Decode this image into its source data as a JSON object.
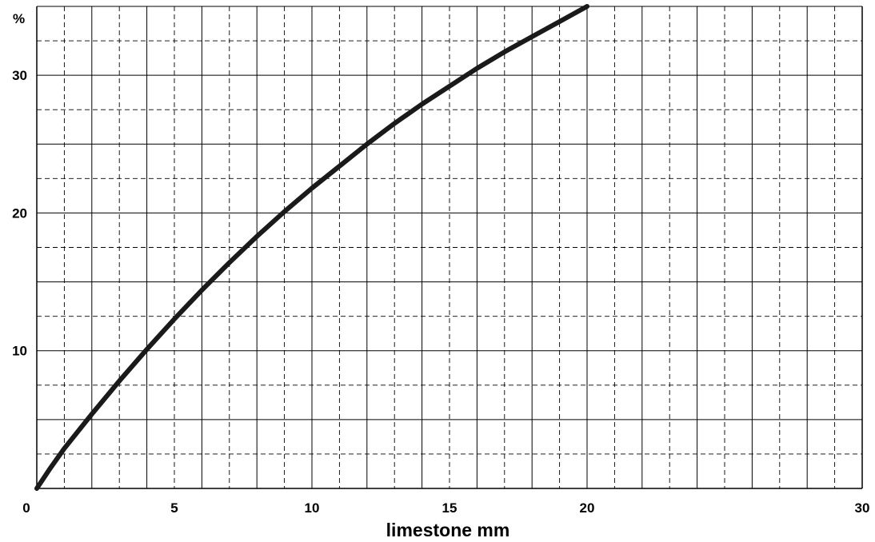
{
  "chart_data": {
    "type": "line",
    "title": "",
    "xlabel": "limestone mm",
    "ylabel": "%",
    "xlim": [
      0,
      30
    ],
    "ylim": [
      0,
      35
    ],
    "x_ticks": [
      "0",
      "5",
      "10",
      "15",
      "20",
      "30"
    ],
    "x_tick_values": [
      0,
      5,
      10,
      15,
      20,
      30
    ],
    "y_ticks": [
      "10",
      "20",
      "30"
    ],
    "y_tick_values": [
      10,
      20,
      30
    ],
    "grid": true,
    "series": [
      {
        "x": [
          0,
          0.5,
          1,
          2,
          3,
          4,
          5,
          6,
          7,
          8,
          9,
          10,
          11,
          12,
          13,
          14,
          15,
          16,
          17,
          18,
          19,
          20
        ],
        "y": [
          0,
          1.5,
          2.9,
          5.4,
          7.8,
          10.1,
          12.3,
          14.4,
          16.4,
          18.3,
          20.1,
          21.8,
          23.4,
          25.0,
          26.5,
          27.9,
          29.2,
          30.5,
          31.7,
          32.8,
          33.9,
          35.0
        ]
      }
    ],
    "colors": {
      "line": "#1a1a1a",
      "grid": "#000000",
      "axis": "#000000"
    }
  }
}
